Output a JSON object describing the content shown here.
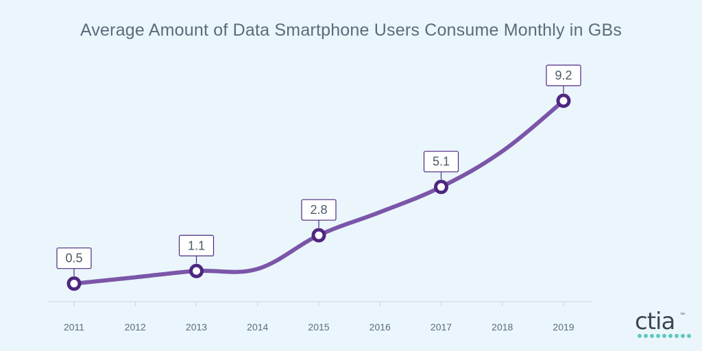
{
  "title": "Average Amount of Data Smartphone Users Consume Monthly in GBs",
  "chart_data": {
    "type": "line",
    "title": "Average Amount of Data Smartphone Users Consume Monthly in GBs",
    "xlabel": "",
    "ylabel": "",
    "categories": [
      "2011",
      "2012",
      "2013",
      "2014",
      "2015",
      "2016",
      "2017",
      "2018",
      "2019"
    ],
    "series": [
      {
        "name": "",
        "values": [
          0.5,
          0.8,
          1.1,
          1.2,
          2.8,
          3.9,
          5.1,
          6.8,
          9.2
        ]
      }
    ],
    "labeled_points": [
      {
        "x": "2011",
        "label": "0.5"
      },
      {
        "x": "2013",
        "label": "1.1"
      },
      {
        "x": "2015",
        "label": "2.8"
      },
      {
        "x": "2017",
        "label": "5.1"
      },
      {
        "x": "2019",
        "label": "9.2"
      }
    ],
    "ylim": [
      0,
      9.2
    ],
    "grid": false,
    "line_color": "#7b56a8",
    "marker_color": "#4d2780"
  },
  "logo": {
    "text": "ctia",
    "tm": "™"
  }
}
